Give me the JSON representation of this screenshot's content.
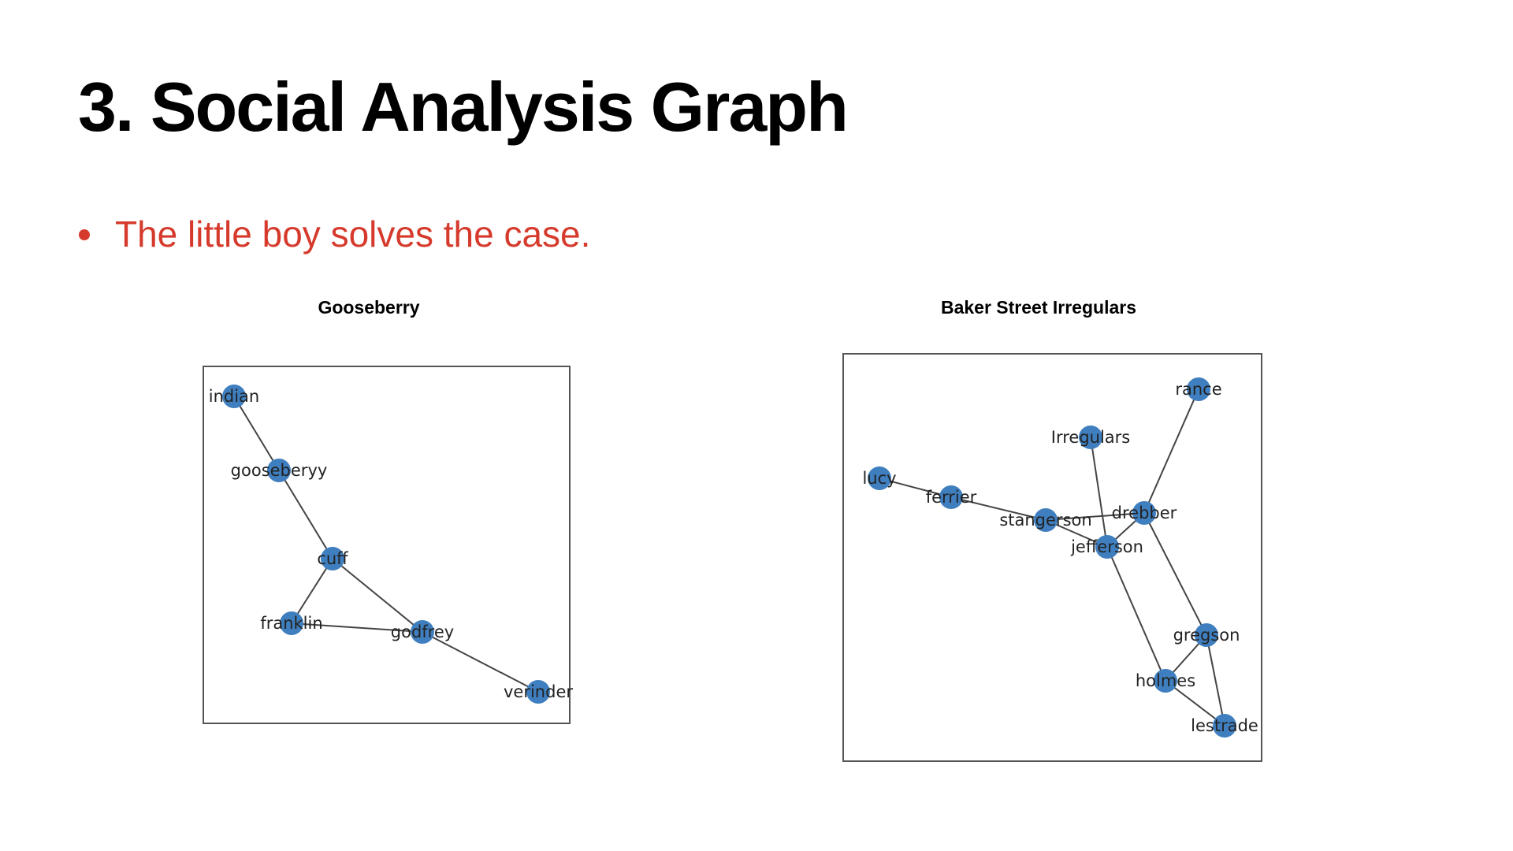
{
  "slide": {
    "title": "3. Social Analysis Graph",
    "bullet": "The little boy solves the case.",
    "bullet_color": "#d63a2c"
  },
  "node_color": "#3f7fbf",
  "edge_color": "#444444",
  "graphs": [
    {
      "title": "Gooseberry",
      "nodes": [
        "indian",
        "gooseberyy",
        "cuff",
        "franklin",
        "godfrey",
        "verinder"
      ],
      "edges": [
        [
          "indian",
          "gooseberyy"
        ],
        [
          "gooseberyy",
          "cuff"
        ],
        [
          "cuff",
          "franklin"
        ],
        [
          "cuff",
          "godfrey"
        ],
        [
          "franklin",
          "godfrey"
        ],
        [
          "godfrey",
          "verinder"
        ]
      ]
    },
    {
      "title": "Baker Street Irregulars",
      "nodes": [
        "rance",
        "Irregulars",
        "lucy",
        "ferrier",
        "stangerson",
        "drebber",
        "jefferson",
        "gregson",
        "holmes",
        "lestrade"
      ],
      "edges": [
        [
          "lucy",
          "ferrier"
        ],
        [
          "ferrier",
          "stangerson"
        ],
        [
          "stangerson",
          "drebber"
        ],
        [
          "stangerson",
          "jefferson"
        ],
        [
          "Irregulars",
          "jefferson"
        ],
        [
          "rance",
          "drebber"
        ],
        [
          "drebber",
          "jefferson"
        ],
        [
          "drebber",
          "gregson"
        ],
        [
          "jefferson",
          "holmes"
        ],
        [
          "gregson",
          "holmes"
        ],
        [
          "gregson",
          "lestrade"
        ],
        [
          "holmes",
          "lestrade"
        ]
      ]
    }
  ]
}
